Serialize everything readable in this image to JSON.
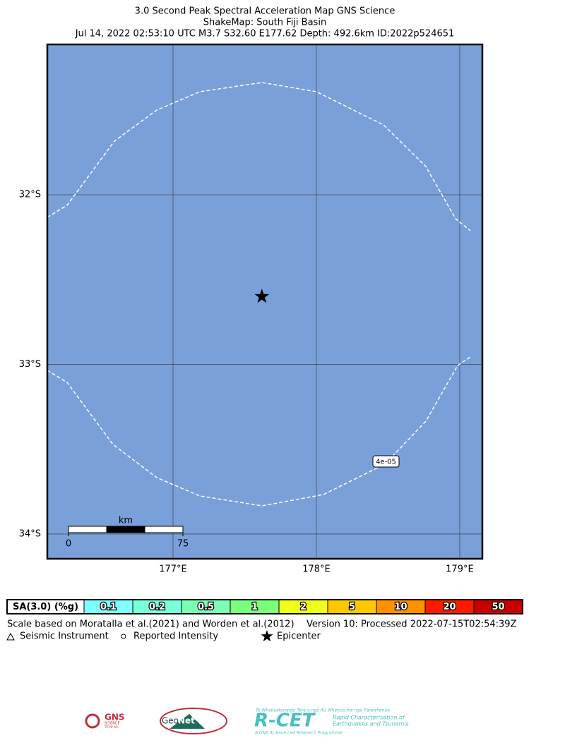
{
  "header": {
    "title": "3.0 Second Peak Spectral Acceleration Map GNS Science",
    "subtitle": "ShakeMap: South Fiji Basin",
    "event": "Jul 14, 2022 02:53:10 UTC M3.7 S32.60 E177.62 Depth: 492.6km ID:2022p524651"
  },
  "map": {
    "lon_range": [
      176.123,
      179.158
    ],
    "lat_range": [
      -34.146,
      -31.114
    ],
    "lon_ticks": [
      {
        "value": 177,
        "label": "177°E"
      },
      {
        "value": 178,
        "label": "178°E"
      },
      {
        "value": 179,
        "label": "179°E"
      }
    ],
    "lat_ticks": [
      {
        "value": -32,
        "label": "32°S"
      },
      {
        "value": -33,
        "label": "33°S"
      },
      {
        "value": -34,
        "label": "34°S"
      }
    ],
    "water_color": "#7aa0d9",
    "epicenter": {
      "lon": 177.62,
      "lat": -32.6
    },
    "contour_label": {
      "value": 4e-05,
      "label": "4e-05"
    },
    "scale_bar": {
      "unit": "km",
      "ticks": [
        0,
        75
      ]
    }
  },
  "legend": {
    "title": "SA(3.0) (%g)",
    "bins": [
      {
        "value": 0.1,
        "color": "#80ffff"
      },
      {
        "value": 0.2,
        "color": "#7affdc"
      },
      {
        "value": 0.5,
        "color": "#7affb4"
      },
      {
        "value": 1,
        "color": "#7aff7a"
      },
      {
        "value": 2,
        "color": "#eeff1a"
      },
      {
        "value": 5,
        "color": "#ffc800"
      },
      {
        "value": 10,
        "color": "#ff9100"
      },
      {
        "value": 20,
        "color": "#ff1a00"
      },
      {
        "value": 50,
        "color": "#c80000"
      }
    ],
    "scale_note": "Scale based on Moratalla et al.(2021) and Worden et al.(2012)",
    "version": "Version 10: Processed 2022-07-15T02:54:39Z",
    "symbols": [
      "Seismic Instrument",
      "Reported Intensity",
      "Epicenter"
    ]
  },
  "logos": {
    "gns": "GNS",
    "gns_sub": "SCIENCE",
    "gns_sub2": "TE PŪ AO",
    "geonet_a": "Geo",
    "geonet_b": "Net",
    "rcet": "R-CET",
    "rcet_maori": "Te Whakaaturanga Tere o ngā Rū Whenua me ngā Parawhenua",
    "rcet_sub1": "Rapid Characterisation of",
    "rcet_sub2": "Earthquakes and Tsunamis",
    "rcet_footer": "A GNS Science Led Research Programme"
  }
}
